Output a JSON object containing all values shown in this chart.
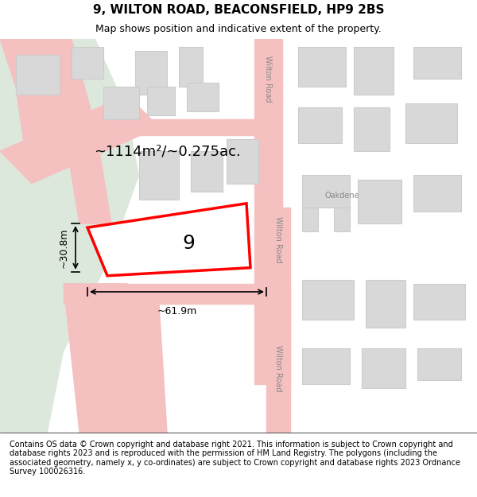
{
  "title": "9, WILTON ROAD, BEACONSFIELD, HP9 2BS",
  "subtitle": "Map shows position and indicative extent of the property.",
  "footer": "Contains OS data © Crown copyright and database right 2021. This information is subject to Crown copyright and database rights 2023 and is reproduced with the permission of HM Land Registry. The polygons (including the associated geometry, namely x, y co-ordinates) are subject to Crown copyright and database rights 2023 Ordnance Survey 100026316.",
  "bg_color": "#f5f5f0",
  "map_bg": "#f8f8f6",
  "green_area_color": "#dce8dc",
  "road_color": "#f5c0c0",
  "road_edge_color": "#e88888",
  "building_fill": "#d8d8d8",
  "building_edge": "#cccccc",
  "highlight_fill": "#ffffff",
  "highlight_edge": "#ff0000",
  "highlight_edge_width": 2.5,
  "label_9": "9",
  "area_label": "~1114m²/~0.275ac.",
  "dim_width": "~61.9m",
  "dim_height": "~30.8m",
  "road_label_1": "Wilton Road",
  "road_label_2": "Wilton Road",
  "road_label_3": "Wilton Road",
  "road_label_oakdene": "Oakdene",
  "title_fontsize": 11,
  "subtitle_fontsize": 9,
  "footer_fontsize": 7
}
